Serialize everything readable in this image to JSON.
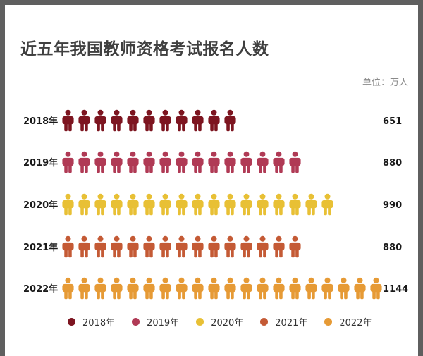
{
  "chart_data": {
    "type": "bar",
    "title": "近五年我国教师资格考试报名人数",
    "unit": "单位：万人",
    "categories": [
      "2018年",
      "2019年",
      "2020年",
      "2021年",
      "2022年"
    ],
    "values": [
      651,
      880,
      990,
      880,
      1144
    ],
    "icon_counts": [
      11,
      15,
      17,
      15,
      20
    ],
    "icon": "person-icon",
    "value_labels": [
      "651",
      "880",
      "990",
      "880",
      "1144"
    ],
    "colors": [
      "#7d1520",
      "#b03a55",
      "#e8c035",
      "#c45a35",
      "#e69a35"
    ],
    "legend": {
      "placement": "bottom-center",
      "entries": [
        "2018年",
        "2019年",
        "2020年",
        "2021年",
        "2022年"
      ]
    },
    "grid": false
  }
}
